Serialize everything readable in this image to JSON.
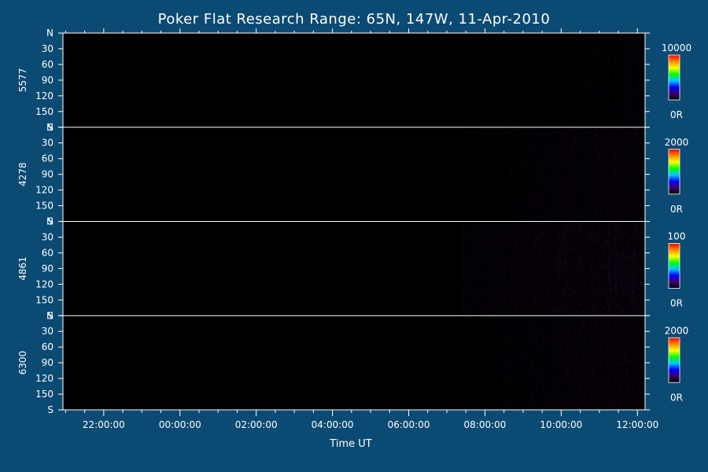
{
  "chart_data": {
    "type": "heatmap",
    "title": "Poker Flat Research Range: 65N, 147W, 11-Apr-2010",
    "xlabel": "Time UT",
    "x_range_hours": [
      20.93,
      36.2
    ],
    "x_ticks": [
      {
        "hour": 22,
        "label": "22:00:00"
      },
      {
        "hour": 24,
        "label": "00:00:00"
      },
      {
        "hour": 26,
        "label": "02:00:00"
      },
      {
        "hour": 28,
        "label": "04:00:00"
      },
      {
        "hour": 30,
        "label": "06:00:00"
      },
      {
        "hour": 32,
        "label": "08:00:00"
      },
      {
        "hour": 34,
        "label": "10:00:00"
      },
      {
        "hour": 36,
        "label": "12:00:00"
      }
    ],
    "y_ticks": [
      {
        "deg": 0,
        "label": "N"
      },
      {
        "deg": 30,
        "label": "30"
      },
      {
        "deg": 60,
        "label": "60"
      },
      {
        "deg": 90,
        "label": "90"
      },
      {
        "deg": 120,
        "label": "120"
      },
      {
        "deg": 150,
        "label": "150"
      },
      {
        "deg": 180,
        "label": "S"
      }
    ],
    "colorbar_colors": [
      "#000000",
      "#3a0066",
      "#0000ff",
      "#00c8ff",
      "#00ff00",
      "#ffff00",
      "#ff8800",
      "#ff0000"
    ],
    "data_start_hour": 31.35,
    "panels": [
      {
        "name": "5577",
        "cbar_max": "10000",
        "cbar_min": "0R",
        "activity": 0.35
      },
      {
        "name": "4278",
        "cbar_max": "2000",
        "cbar_min": "0R",
        "activity": 0.55
      },
      {
        "name": "4861",
        "cbar_max": "100",
        "cbar_min": "0R",
        "activity": 0.9
      },
      {
        "name": "6300",
        "cbar_max": "2000",
        "cbar_min": "0R",
        "activity": 0.6
      }
    ]
  }
}
